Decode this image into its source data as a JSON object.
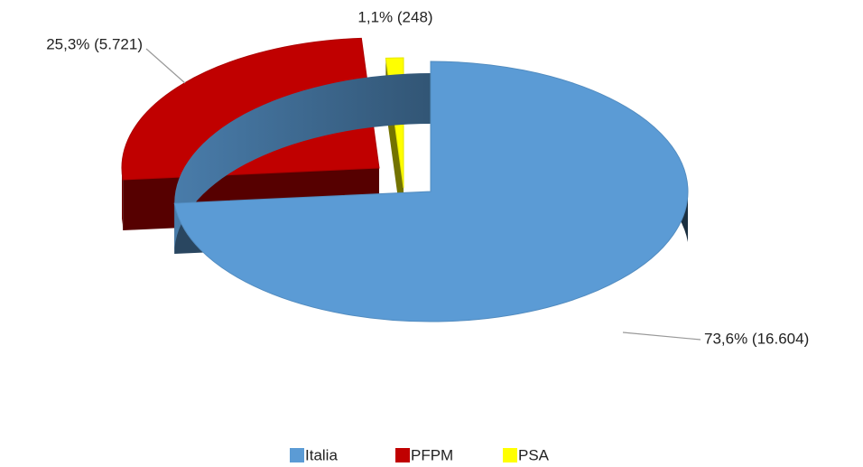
{
  "chart_data": {
    "type": "pie",
    "categories": [
      "Italia",
      "PFPM",
      "PSA"
    ],
    "values": [
      16604,
      5721,
      248
    ],
    "value_labels": [
      "73,6% (16.604)",
      "25,3% (5.721)",
      "1,1% (248)"
    ],
    "colors": [
      "#5b9bd5",
      "#c00000",
      "#ffff00"
    ],
    "legend": "bottom"
  }
}
